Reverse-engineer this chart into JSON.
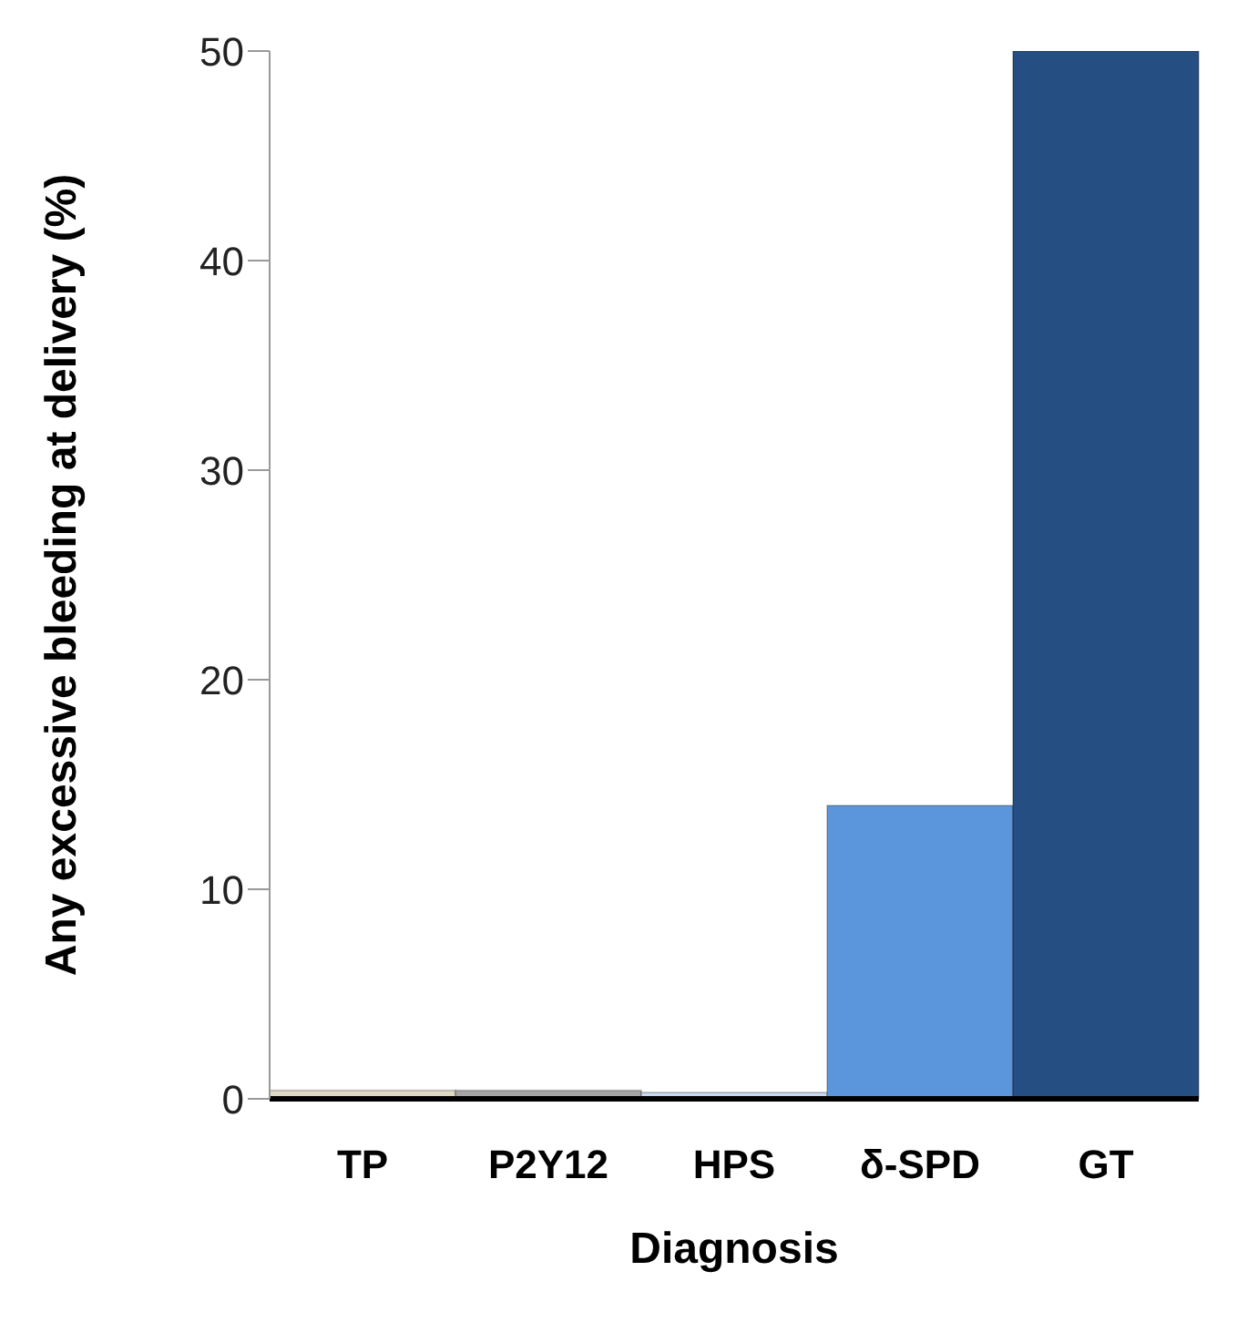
{
  "chart_data": {
    "type": "bar",
    "xlabel": "Diagnosis",
    "ylabel": "Any excessive bleeding at delivery (%)",
    "categories": [
      "TP",
      "P2Y12",
      "HPS",
      "δ-SPD",
      "GT"
    ],
    "values": [
      0.4,
      0.4,
      0.3,
      14,
      50
    ],
    "colors": [
      "#ddd9c3",
      "#a6a6a6",
      "#c6d9f1",
      "#5b96dc",
      "#254f83"
    ],
    "ylim": [
      0,
      50
    ],
    "yticks": [
      0,
      10,
      20,
      30,
      40,
      50
    ],
    "grid": false,
    "legend": false
  }
}
